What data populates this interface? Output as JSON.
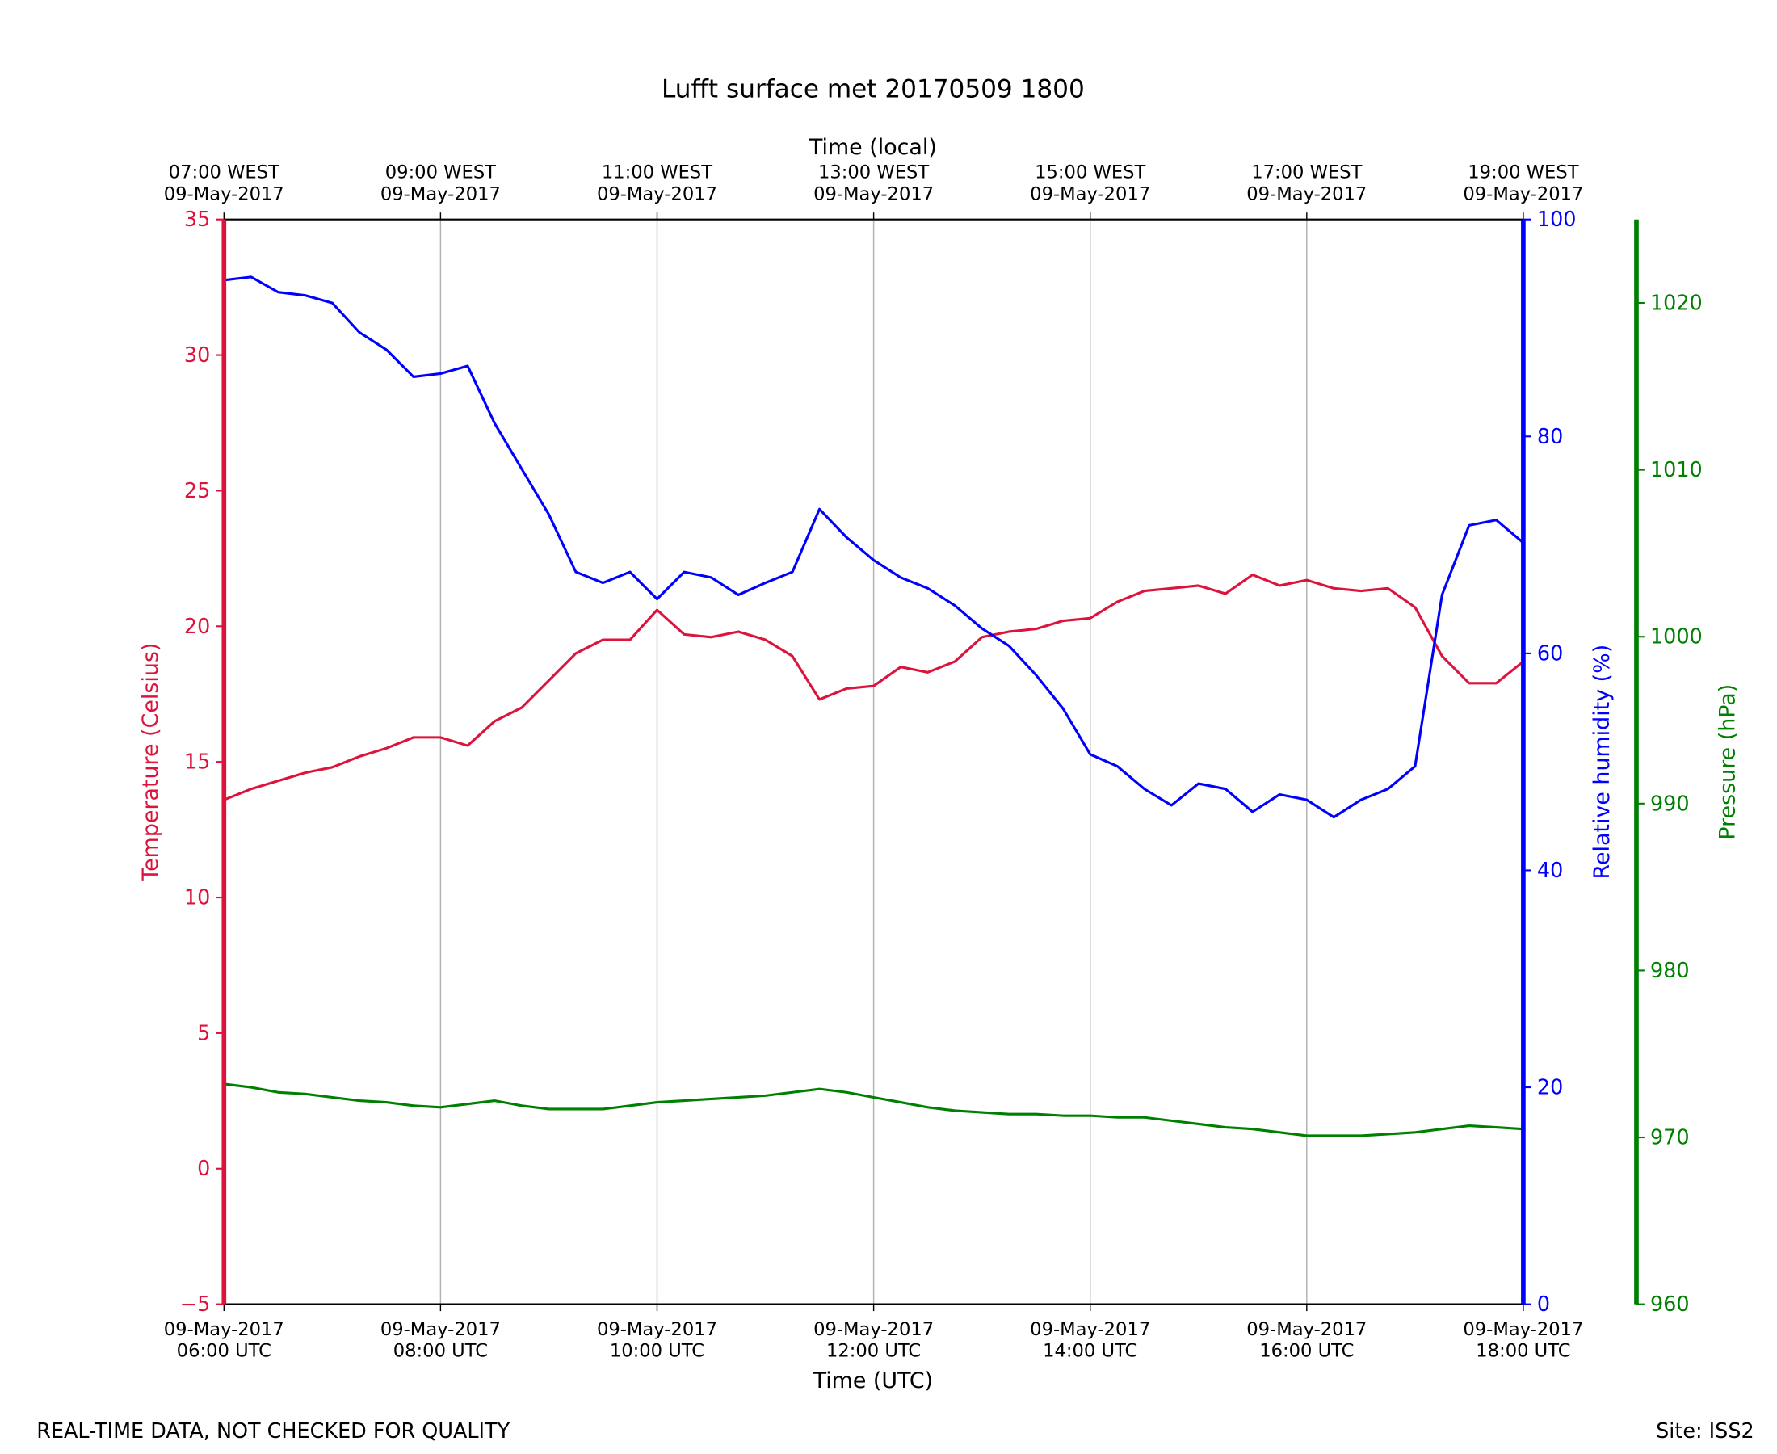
{
  "chart_data": {
    "type": "line",
    "title": "Lufft surface met 20170509 1800",
    "xlabel": "Time (UTC)",
    "x2label": "Time (local)",
    "footer_left": "REAL-TIME DATA, NOT CHECKED FOR QUALITY",
    "footer_right": "Site: ISS2",
    "grid": true,
    "x": [
      6,
      6.25,
      6.5,
      6.75,
      7,
      7.25,
      7.5,
      7.75,
      8,
      8.25,
      8.5,
      8.75,
      9,
      9.25,
      9.5,
      9.75,
      10,
      10.25,
      10.5,
      10.75,
      11,
      11.25,
      11.5,
      11.75,
      12,
      12.25,
      12.5,
      12.75,
      13,
      13.25,
      13.5,
      13.75,
      14,
      14.25,
      14.5,
      14.75,
      15,
      15.25,
      15.5,
      15.75,
      16,
      16.25,
      16.5,
      16.75,
      17,
      17.25,
      17.5,
      17.75,
      18
    ],
    "xlim": [
      6,
      18
    ],
    "xticks": [
      {
        "value": 6,
        "label": [
          "09-May-2017",
          "06:00 UTC"
        ]
      },
      {
        "value": 8,
        "label": [
          "09-May-2017",
          "08:00 UTC"
        ]
      },
      {
        "value": 10,
        "label": [
          "09-May-2017",
          "10:00 UTC"
        ]
      },
      {
        "value": 12,
        "label": [
          "09-May-2017",
          "12:00 UTC"
        ]
      },
      {
        "value": 14,
        "label": [
          "09-May-2017",
          "14:00 UTC"
        ]
      },
      {
        "value": 16,
        "label": [
          "09-May-2017",
          "16:00 UTC"
        ]
      },
      {
        "value": 18,
        "label": [
          "09-May-2017",
          "18:00 UTC"
        ]
      }
    ],
    "x2ticks": [
      {
        "value": 6,
        "label": [
          "07:00 WEST",
          "09-May-2017"
        ]
      },
      {
        "value": 8,
        "label": [
          "09:00 WEST",
          "09-May-2017"
        ]
      },
      {
        "value": 10,
        "label": [
          "11:00 WEST",
          "09-May-2017"
        ]
      },
      {
        "value": 12,
        "label": [
          "13:00 WEST",
          "09-May-2017"
        ]
      },
      {
        "value": 14,
        "label": [
          "15:00 WEST",
          "09-May-2017"
        ]
      },
      {
        "value": 16,
        "label": [
          "17:00 WEST",
          "09-May-2017"
        ]
      },
      {
        "value": 18,
        "label": [
          "19:00 WEST",
          "09-May-2017"
        ]
      }
    ],
    "ylim": [
      -5,
      35
    ],
    "yticks": [
      {
        "value": -5,
        "label": "−5"
      },
      0,
      5,
      10,
      15,
      20,
      25,
      30,
      35
    ],
    "y2lim": [
      0,
      100
    ],
    "y2ticks": [
      0,
      20,
      40,
      60,
      80,
      100
    ],
    "y3lim": [
      960,
      1025
    ],
    "y3ticks": [
      960,
      970,
      980,
      990,
      1000,
      1010,
      1020
    ],
    "series": [
      {
        "name": "Temperature (Celsius)",
        "color": "#dc143c",
        "axis": "y",
        "values": [
          13.6,
          14.0,
          14.3,
          14.6,
          14.8,
          15.2,
          15.5,
          15.9,
          15.9,
          15.6,
          16.5,
          17.0,
          18.0,
          19.0,
          19.5,
          19.5,
          20.6,
          19.7,
          19.6,
          19.8,
          19.5,
          18.9,
          17.3,
          17.7,
          17.8,
          18.5,
          18.3,
          18.7,
          19.6,
          19.8,
          19.9,
          20.2,
          20.3,
          20.9,
          21.3,
          21.4,
          21.5,
          21.2,
          21.9,
          21.5,
          21.7,
          21.4,
          21.3,
          21.4,
          20.7,
          18.9,
          17.9,
          17.9,
          18.7
        ]
      },
      {
        "name": "Relative humidity (%)",
        "color": "#0000ff",
        "axis": "y2",
        "values": [
          94.4,
          94.7,
          93.3,
          93,
          92.3,
          89.6,
          88,
          85.5,
          85.8,
          86.5,
          81.2,
          77,
          72.8,
          67.5,
          66.5,
          67.5,
          65,
          67.5,
          67,
          65.4,
          66.5,
          67.5,
          73.3,
          70.7,
          68.6,
          67,
          66,
          64.4,
          62.3,
          60.7,
          58,
          54.9,
          50.7,
          49.6,
          47.5,
          46,
          48,
          47.5,
          45.4,
          47,
          46.5,
          44.9,
          46.5,
          47.5,
          49.6,
          65.4,
          71.8,
          72.3,
          70.2
        ]
      },
      {
        "name": "Pressure (hPa)",
        "color": "#008000",
        "axis": "y3",
        "values": [
          973.2,
          973.0,
          972.7,
          972.6,
          972.4,
          972.2,
          972.1,
          971.9,
          971.8,
          972.0,
          972.2,
          971.9,
          971.7,
          971.7,
          971.7,
          971.9,
          972.1,
          972.2,
          972.3,
          972.4,
          972.5,
          972.7,
          972.9,
          972.7,
          972.4,
          972.1,
          971.8,
          971.6,
          971.5,
          971.4,
          971.4,
          971.3,
          971.3,
          971.2,
          971.2,
          971.0,
          970.8,
          970.6,
          970.5,
          970.3,
          970.1,
          970.1,
          970.1,
          970.2,
          970.3,
          970.5,
          970.7,
          970.6,
          970.5
        ]
      }
    ]
  }
}
